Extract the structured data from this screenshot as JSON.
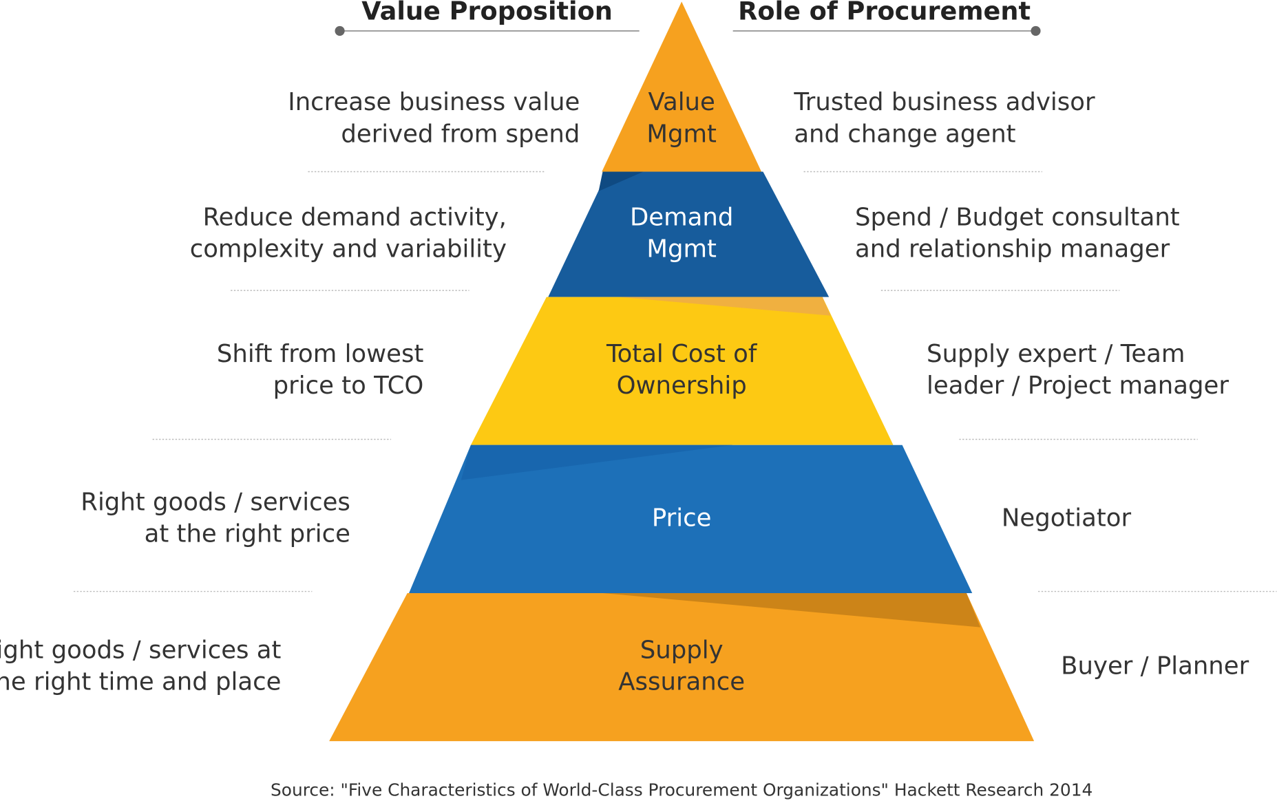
{
  "headers": {
    "value_proposition": "Value Proposition",
    "role_of_procurement": "Role of Procurement"
  },
  "levels": [
    {
      "label": [
        "Value",
        "Mgmt"
      ],
      "value_proposition": [
        "Increase business value",
        "derived from spend"
      ],
      "role": [
        "Trusted business advisor",
        "and change agent"
      ]
    },
    {
      "label": [
        "Demand",
        "Mgmt"
      ],
      "value_proposition": [
        "Reduce demand activity,",
        "complexity and variability"
      ],
      "role": [
        "Spend / Budget consultant",
        "and relationship manager"
      ]
    },
    {
      "label": [
        "Total Cost of",
        "Ownership"
      ],
      "value_proposition": [
        "Shift from lowest",
        "price to TCO"
      ],
      "role": [
        "Supply expert / Team",
        "leader / Project manager"
      ]
    },
    {
      "label": [
        "Price"
      ],
      "value_proposition": [
        "Right goods / services",
        "at the right price"
      ],
      "role": [
        "Negotiator"
      ]
    },
    {
      "label": [
        "Supply",
        "Assurance"
      ],
      "value_proposition": [
        "Right goods / services at",
        "the right time and place"
      ],
      "role": [
        "Buyer / Planner"
      ]
    }
  ],
  "source": "Source:  \"Five Characteristics of World-Class Procurement Organizations\" Hackett Research 2014"
}
